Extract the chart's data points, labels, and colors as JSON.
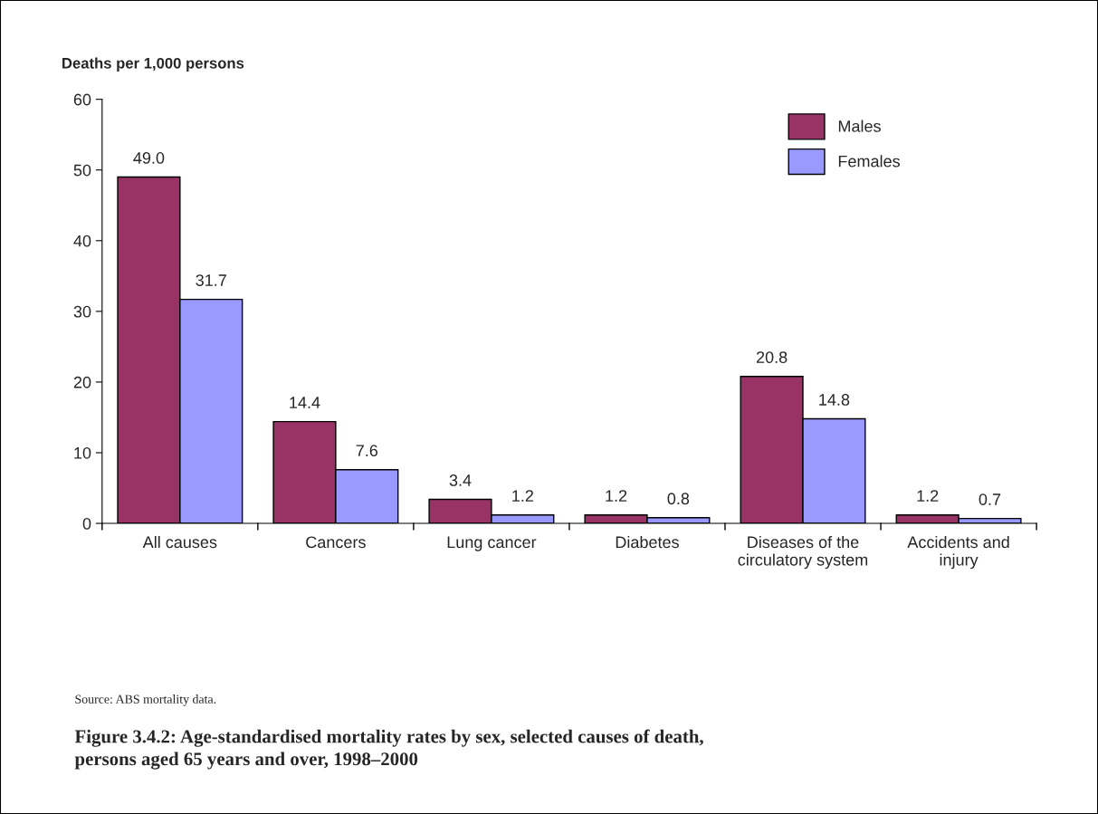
{
  "chart_data": {
    "type": "bar",
    "title": "Figure 3.4.2: Age-standardised mortality rates by sex, selected causes of death,\npersons aged 65 years and over, 1998–2000",
    "ylabel": "Deaths per 1,000 persons",
    "annotations": [
      "Source: ABS mortality data."
    ],
    "categories": [
      "All causes",
      "Cancers",
      "Lung cancer",
      "Diabetes",
      "Diseases of the\ncirculatory system",
      "Accidents and\ninjury"
    ],
    "series": [
      {
        "name": "Males",
        "color": "#993366",
        "values": [
          49.0,
          14.4,
          3.4,
          1.2,
          20.8,
          1.2
        ],
        "value_labels": [
          "49.0",
          "14.4",
          "3.4",
          "1.2",
          "20.8",
          "1.2"
        ]
      },
      {
        "name": "Females",
        "color": "#9999ff",
        "values": [
          31.7,
          7.6,
          1.2,
          0.8,
          14.8,
          0.7
        ],
        "value_labels": [
          "31.7",
          "7.6",
          "1.2",
          "0.8",
          "14.8",
          "0.7"
        ]
      }
    ],
    "ylim": [
      0,
      60
    ],
    "yticks": [
      0,
      10,
      20,
      30,
      40,
      50,
      60
    ],
    "grid": false,
    "legend": "top right"
  }
}
